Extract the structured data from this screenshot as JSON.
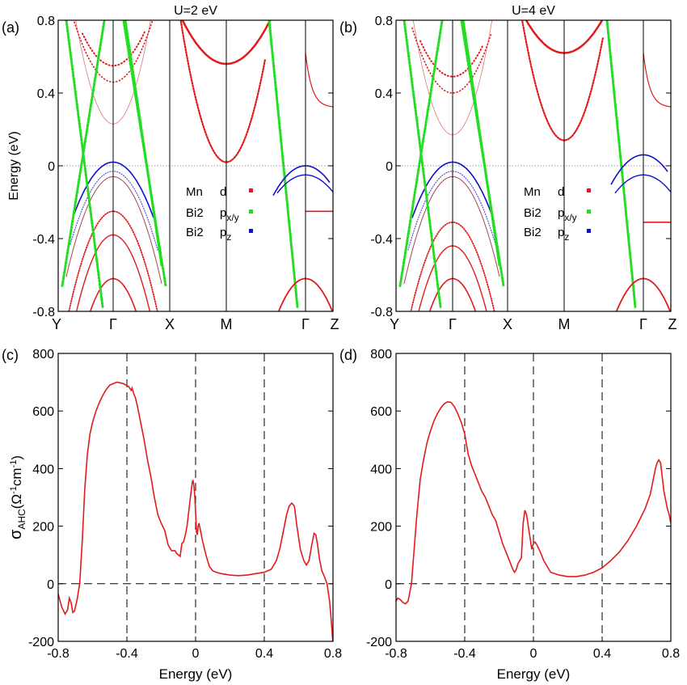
{
  "chart_data": [
    {
      "panel": "(a)",
      "type": "line",
      "title": "U=2 eV",
      "ylabel": "Energy (eV)",
      "ylim": [
        -0.8,
        0.8
      ],
      "yticks": [
        "0.8",
        "0.4",
        "0",
        "-0.4",
        "-0.8"
      ],
      "kpoints": [
        "Y",
        "Γ",
        "X",
        "M",
        "Γ",
        "Z"
      ],
      "legend": {
        "placement": "center-right",
        "entries": [
          {
            "atom": "Mn",
            "orbital": "d",
            "color": "#e31a1c"
          },
          {
            "atom": "Bi2",
            "orbital": "p",
            "sub": "x/y",
            "color": "#22dd22"
          },
          {
            "atom": "Bi2",
            "orbital": "p",
            "sub": "z",
            "color": "#1010cc"
          }
        ]
      }
    },
    {
      "panel": "(b)",
      "type": "line",
      "title": "U=4 eV",
      "ylim": [
        -0.8,
        0.8
      ],
      "yticks": [
        "0.8",
        "0.4",
        "0",
        "-0.4",
        "-0.8"
      ],
      "kpoints": [
        "Y",
        "Γ",
        "X",
        "M",
        "Γ",
        "Z"
      ],
      "legend": {
        "placement": "center-right",
        "entries": [
          {
            "atom": "Mn",
            "orbital": "d",
            "color": "#e31a1c"
          },
          {
            "atom": "Bi2",
            "orbital": "p",
            "sub": "x/y",
            "color": "#22dd22"
          },
          {
            "atom": "Bi2",
            "orbital": "p",
            "sub": "z",
            "color": "#1010cc"
          }
        ]
      }
    },
    {
      "panel": "(c)",
      "type": "line",
      "xlabel": "Energy (eV)",
      "ylabel": "σAHC(Ω-1cm-1)",
      "ylabel_parts": {
        "sym": "σ",
        "sub": "AHC",
        "pre": "(Ω",
        "sup1": "-1",
        "mid": "cm",
        "sup2": "-1",
        "post": ")"
      },
      "xlim": [
        -0.8,
        0.8
      ],
      "ylim": [
        -200,
        800
      ],
      "xticks": [
        "-0.8",
        "-0.4",
        "0",
        "0.4",
        "0.8"
      ],
      "yticks": [
        "800",
        "600",
        "400",
        "200",
        "0",
        "-200"
      ],
      "vlines": [
        -0.4,
        0,
        0.4
      ],
      "hline": 0,
      "series": [
        {
          "color": "#e31a1c",
          "x": [
            -0.8,
            -0.78,
            -0.76,
            -0.745,
            -0.735,
            -0.725,
            -0.715,
            -0.705,
            -0.69,
            -0.675,
            -0.66,
            -0.645,
            -0.63,
            -0.615,
            -0.6,
            -0.58,
            -0.56,
            -0.54,
            -0.52,
            -0.5,
            -0.48,
            -0.46,
            -0.44,
            -0.42,
            -0.405,
            -0.39,
            -0.375,
            -0.37,
            -0.36,
            -0.35,
            -0.34,
            -0.32,
            -0.3,
            -0.28,
            -0.26,
            -0.24,
            -0.22,
            -0.2,
            -0.18,
            -0.16,
            -0.14,
            -0.12,
            -0.11,
            -0.1,
            -0.09,
            -0.08,
            -0.07,
            -0.06,
            -0.05,
            -0.04,
            -0.03,
            -0.02,
            -0.015,
            -0.01,
            -0.005,
            0,
            0.005,
            0.01,
            0.015,
            0.02,
            0.03,
            0.04,
            0.06,
            0.08,
            0.1,
            0.12,
            0.15,
            0.2,
            0.25,
            0.3,
            0.35,
            0.4,
            0.44,
            0.47,
            0.49,
            0.51,
            0.53,
            0.545,
            0.56,
            0.575,
            0.59,
            0.61,
            0.63,
            0.645,
            0.66,
            0.675,
            0.69,
            0.7,
            0.71,
            0.72,
            0.735,
            0.75,
            0.765,
            0.78,
            0.79,
            0.8
          ],
          "y": [
            -35,
            -80,
            -105,
            -90,
            -50,
            -65,
            -100,
            -95,
            -55,
            0,
            150,
            330,
            450,
            520,
            560,
            600,
            630,
            655,
            675,
            690,
            695,
            700,
            698,
            695,
            690,
            685,
            672,
            680,
            660,
            645,
            620,
            560,
            500,
            430,
            370,
            300,
            240,
            210,
            185,
            135,
            115,
            115,
            105,
            100,
            95,
            140,
            145,
            170,
            200,
            250,
            300,
            350,
            360,
            340,
            310,
            250,
            180,
            170,
            200,
            210,
            180,
            150,
            100,
            60,
            45,
            40,
            35,
            30,
            28,
            30,
            35,
            40,
            50,
            80,
            120,
            180,
            240,
            270,
            280,
            270,
            200,
            120,
            80,
            65,
            80,
            130,
            175,
            170,
            135,
            90,
            45,
            25,
            0,
            -60,
            -130,
            -210
          ]
        }
      ]
    },
    {
      "panel": "(d)",
      "type": "line",
      "xlabel": "Energy (eV)",
      "xlim": [
        -0.8,
        0.8
      ],
      "ylim": [
        -200,
        800
      ],
      "xticks": [
        "-0.8",
        "-0.4",
        "0",
        "0.4",
        "0.8"
      ],
      "yticks": [
        "800",
        "600",
        "400",
        "200",
        "0",
        "-200"
      ],
      "vlines": [
        -0.4,
        0,
        0.4
      ],
      "hline": 0,
      "series": [
        {
          "color": "#e31a1c",
          "x": [
            -0.8,
            -0.79,
            -0.775,
            -0.76,
            -0.745,
            -0.73,
            -0.72,
            -0.71,
            -0.7,
            -0.68,
            -0.66,
            -0.64,
            -0.62,
            -0.6,
            -0.58,
            -0.56,
            -0.54,
            -0.52,
            -0.5,
            -0.48,
            -0.46,
            -0.44,
            -0.42,
            -0.4,
            -0.38,
            -0.36,
            -0.34,
            -0.32,
            -0.3,
            -0.28,
            -0.26,
            -0.24,
            -0.22,
            -0.2,
            -0.18,
            -0.16,
            -0.14,
            -0.12,
            -0.11,
            -0.1,
            -0.09,
            -0.08,
            -0.07,
            -0.06,
            -0.05,
            -0.04,
            -0.03,
            -0.02,
            -0.01,
            0,
            0.01,
            0.02,
            0.04,
            0.06,
            0.08,
            0.1,
            0.15,
            0.2,
            0.25,
            0.3,
            0.35,
            0.4,
            0.45,
            0.5,
            0.55,
            0.6,
            0.65,
            0.68,
            0.7,
            0.71,
            0.72,
            0.73,
            0.74,
            0.75,
            0.76,
            0.77,
            0.78,
            0.79,
            0.8
          ],
          "y": [
            -60,
            -50,
            -55,
            -65,
            -70,
            -60,
            -30,
            0,
            80,
            230,
            360,
            430,
            490,
            530,
            565,
            590,
            610,
            625,
            632,
            630,
            615,
            590,
            560,
            520,
            450,
            410,
            380,
            350,
            320,
            300,
            270,
            240,
            220,
            180,
            140,
            110,
            80,
            50,
            40,
            50,
            70,
            80,
            90,
            210,
            255,
            240,
            200,
            160,
            120,
            140,
            145,
            135,
            110,
            80,
            60,
            40,
            30,
            25,
            25,
            30,
            40,
            55,
            80,
            110,
            150,
            200,
            260,
            310,
            370,
            400,
            420,
            430,
            420,
            370,
            320,
            290,
            260,
            240,
            210
          ]
        }
      ]
    }
  ]
}
